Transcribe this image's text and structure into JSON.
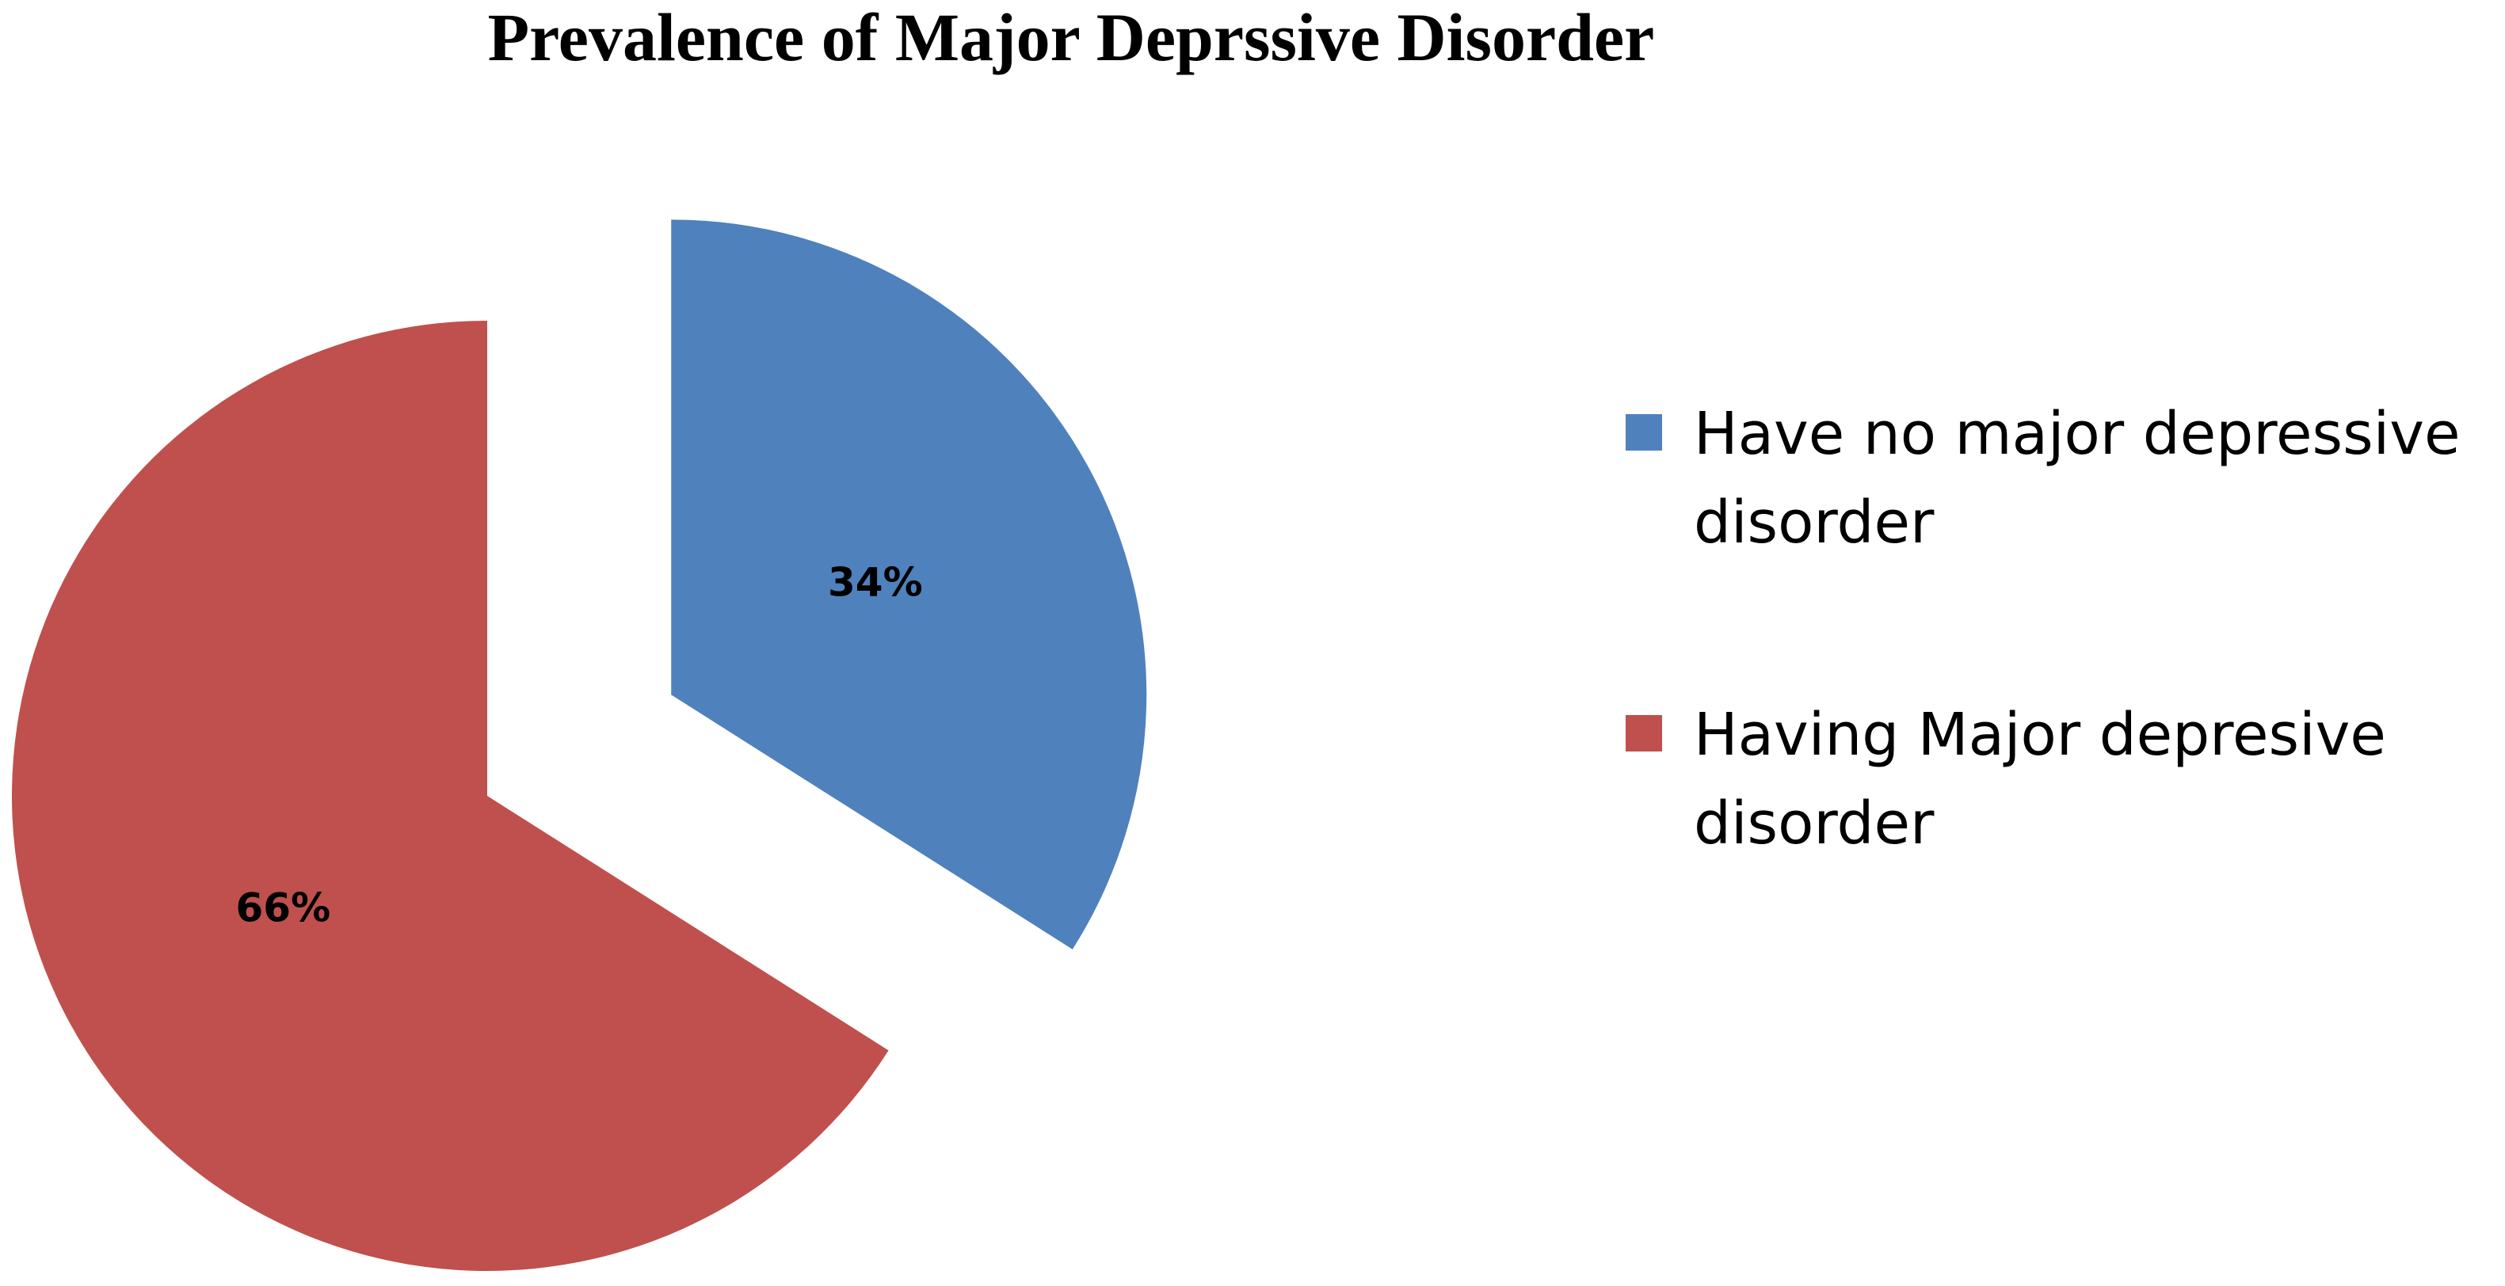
{
  "chart_data": {
    "type": "pie",
    "title": "Prevalence of Major Deprssive Disorder",
    "slices": [
      {
        "label_lines": [
          "Have no major depressive",
          "disorder"
        ],
        "value": 34,
        "value_label": "34%",
        "color": "#4f81bd",
        "exploded": true
      },
      {
        "label_lines": [
          "Having Major depresive",
          "disorder"
        ],
        "value": 66,
        "value_label": "66%",
        "color": "#c0504d",
        "exploded": false
      }
    ],
    "start_angle": "12 o'clock",
    "direction": "clockwise",
    "legend_position": "right"
  }
}
